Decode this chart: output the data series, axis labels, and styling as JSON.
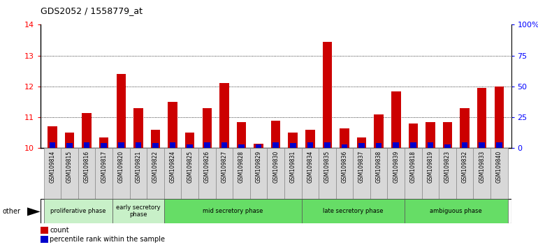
{
  "title": "GDS2052 / 1558779_at",
  "samples": [
    "GSM109814",
    "GSM109815",
    "GSM109816",
    "GSM109817",
    "GSM109820",
    "GSM109821",
    "GSM109822",
    "GSM109824",
    "GSM109825",
    "GSM109826",
    "GSM109827",
    "GSM109828",
    "GSM109829",
    "GSM109830",
    "GSM109831",
    "GSM109834",
    "GSM109835",
    "GSM109836",
    "GSM109837",
    "GSM109838",
    "GSM109839",
    "GSM109818",
    "GSM109819",
    "GSM109823",
    "GSM109832",
    "GSM109833",
    "GSM109840"
  ],
  "count_values": [
    10.7,
    10.5,
    11.15,
    10.35,
    12.4,
    11.3,
    10.6,
    11.5,
    10.5,
    11.3,
    12.1,
    10.85,
    10.15,
    10.9,
    10.5,
    10.6,
    13.45,
    10.65,
    10.35,
    11.1,
    11.85,
    10.8,
    10.85,
    10.85,
    11.3,
    11.95,
    12.0
  ],
  "percentile_values": [
    5,
    4,
    5,
    4,
    5,
    5,
    4,
    5,
    3,
    5,
    5,
    3,
    3,
    5,
    4,
    5,
    5,
    3,
    4,
    4,
    5,
    5,
    5,
    3,
    5,
    5,
    5
  ],
  "ylim_left": [
    10,
    14
  ],
  "ylim_right": [
    0,
    100
  ],
  "yticks_left": [
    10,
    11,
    12,
    13,
    14
  ],
  "yticks_right": [
    0,
    25,
    50,
    75,
    100
  ],
  "ytick_labels_right": [
    "0",
    "25",
    "50",
    "75",
    "100%"
  ],
  "grid_values": [
    11,
    12,
    13
  ],
  "count_color": "#cc0000",
  "percentile_color": "#0000cc",
  "phases": [
    {
      "label": "proliferative phase",
      "start": 0,
      "end": 4,
      "color": "#c8f0c8"
    },
    {
      "label": "early secretory\nphase",
      "start": 4,
      "end": 7,
      "color": "#c8f0c8"
    },
    {
      "label": "mid secretory phase",
      "start": 7,
      "end": 15,
      "color": "#66dd66"
    },
    {
      "label": "late secretory phase",
      "start": 15,
      "end": 21,
      "color": "#66dd66"
    },
    {
      "label": "ambiguous phase",
      "start": 21,
      "end": 27,
      "color": "#66dd66"
    }
  ],
  "other_label": "other",
  "legend_count": "count",
  "legend_percentile": "percentile rank within the sample",
  "ticklabel_bg": "#d8d8d8",
  "plot_bg_color": "#ffffff"
}
